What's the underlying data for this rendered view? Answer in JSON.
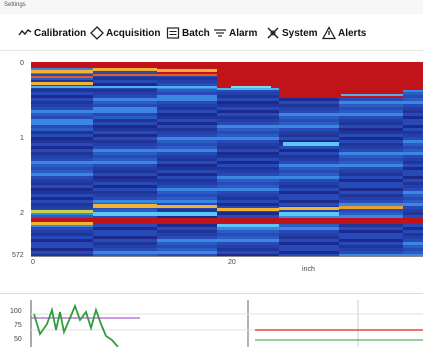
{
  "window": {
    "title": "Settings"
  },
  "toolbar": {
    "items": [
      {
        "label": "Calibration",
        "icon": "wave-icon"
      },
      {
        "label": "Acquisition",
        "icon": "diamond-icon"
      },
      {
        "label": "Batch",
        "icon": "batch-icon"
      },
      {
        "label": "Alarm",
        "icon": "alarm-lines-icon"
      },
      {
        "label": "System",
        "icon": "system-tools-icon"
      },
      {
        "label": "Alerts",
        "icon": "warning-triangle-icon"
      }
    ]
  },
  "heatmap": {
    "y_ticks": [
      "0",
      "1",
      "2",
      "572"
    ],
    "x_ticks": [
      "0",
      "20"
    ],
    "x_unit": "inch"
  },
  "trend": {
    "y_ticks": [
      "100",
      "75",
      "50"
    ]
  },
  "colors": {
    "heat_low": "#1b2a8c",
    "heat_mid": "#3a86e0",
    "heat_high": "#c0141a",
    "heat_warm": "#f2b233",
    "trend_line": "#2e9e3a",
    "alarm_line": "#e24a3b",
    "limit_line": "#b05ad0"
  }
}
